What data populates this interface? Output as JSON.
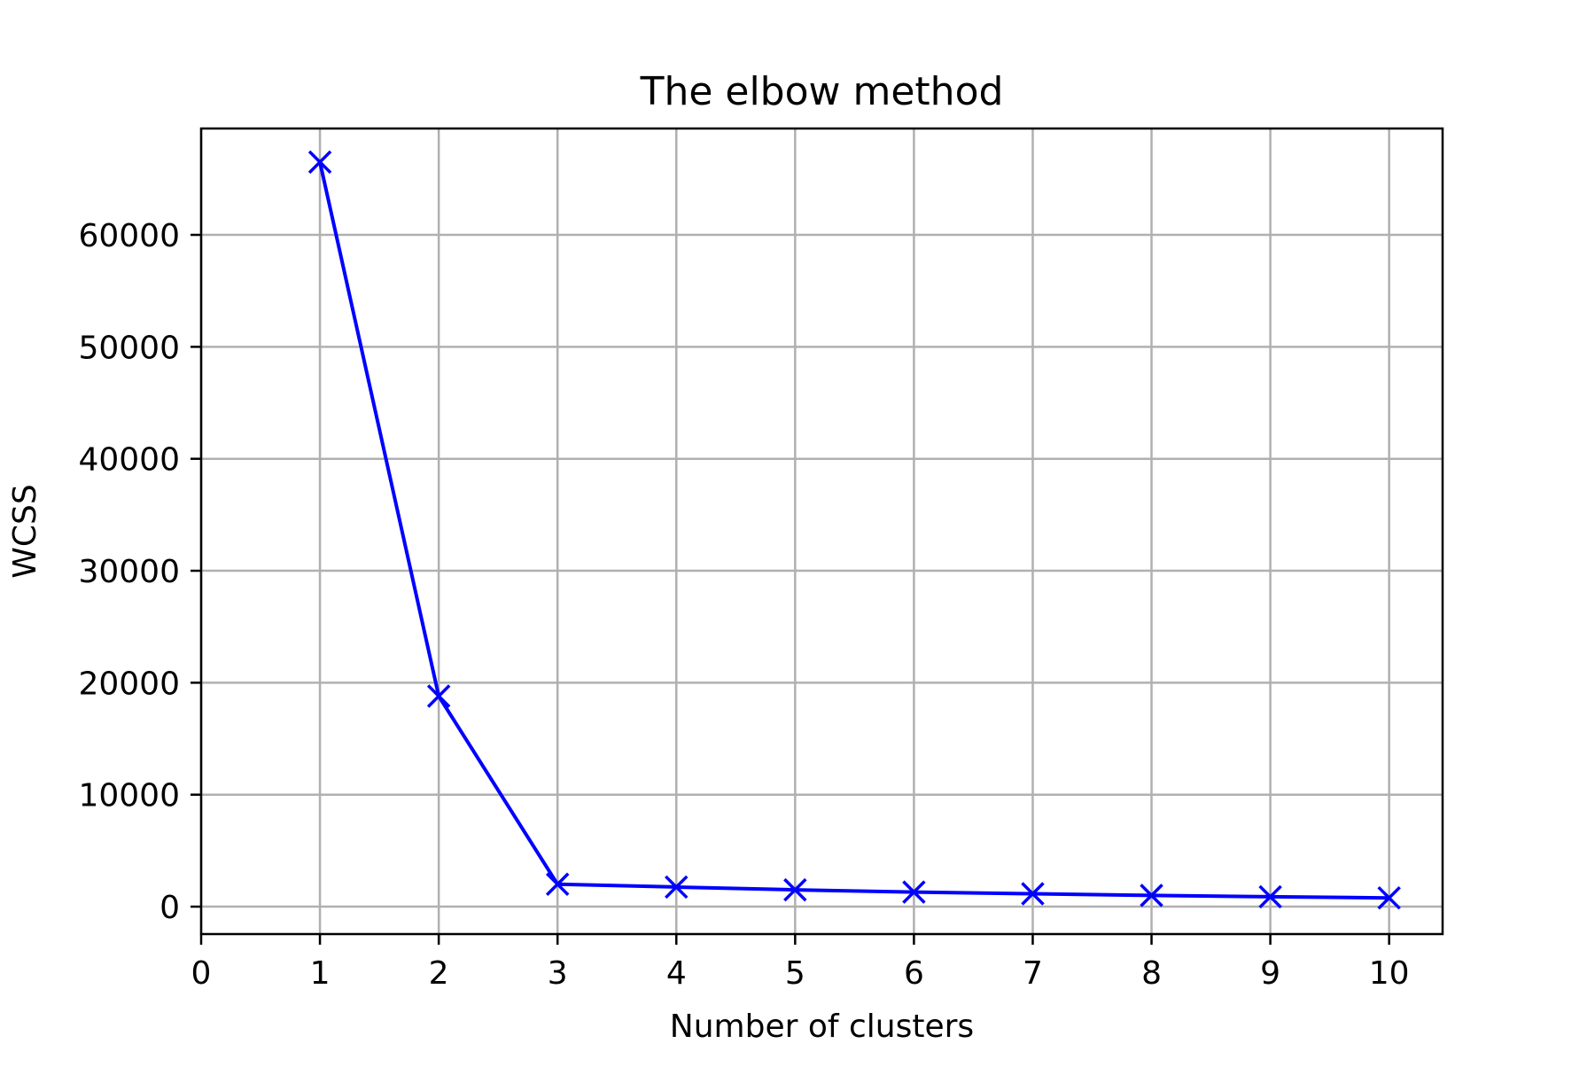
{
  "chart_data": {
    "type": "line",
    "title": "The elbow method",
    "xlabel": "Number of clusters",
    "ylabel": "WCSS",
    "x": [
      1,
      2,
      3,
      4,
      5,
      6,
      7,
      8,
      9,
      10
    ],
    "series": [
      {
        "values": [
          66500,
          18800,
          2000,
          1750,
          1500,
          1300,
          1150,
          1000,
          880,
          780
        ],
        "color": "#0000ff",
        "marker": "x"
      }
    ],
    "xlim": [
      0,
      10.45
    ],
    "ylim": [
      -2450,
      69500
    ],
    "xticks": [
      0,
      1,
      2,
      3,
      4,
      5,
      6,
      7,
      8,
      9,
      10
    ],
    "yticks": [
      0,
      10000,
      20000,
      30000,
      40000,
      50000,
      60000
    ],
    "grid": true,
    "grid_color": "#b0b0b0"
  }
}
